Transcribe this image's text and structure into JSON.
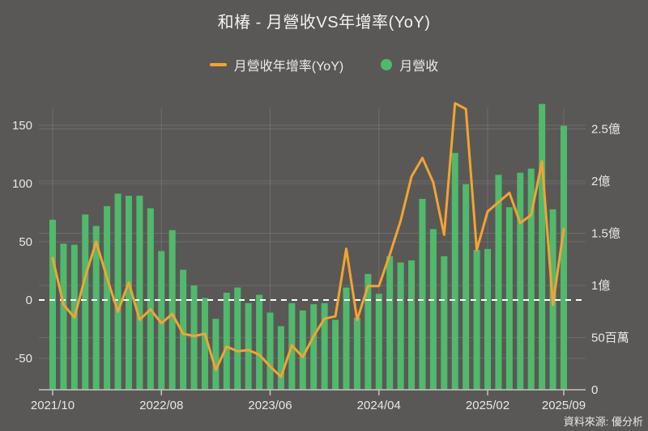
{
  "page": {
    "title": "和椿 - 月營收VS年增率(YoY)",
    "source_note": "資料來源: 優分析"
  },
  "legend": {
    "line_label": "月營收年增率(YoY)",
    "bar_label": "月營收"
  },
  "colors": {
    "background": "#5a5856",
    "bar": "#50b96c",
    "line": "#f2a431",
    "zero_line": "#ffffff",
    "grid": "rgba(255,255,255,0.13)",
    "axis": "#c6c3c0",
    "text": "#e9e7e4"
  },
  "chart_data": {
    "type": "combo",
    "title": "和椿 - 月營收VS年增率(YoY)",
    "legend_position": "top",
    "grid": true,
    "categories": [
      "2021/10",
      "2021/11",
      "2021/12",
      "2022/01",
      "2022/02",
      "2022/03",
      "2022/04",
      "2022/05",
      "2022/06",
      "2022/07",
      "2022/08",
      "2022/09",
      "2022/10",
      "2022/11",
      "2022/12",
      "2023/01",
      "2023/02",
      "2023/03",
      "2023/04",
      "2023/05",
      "2023/06",
      "2023/07",
      "2023/08",
      "2023/09",
      "2023/10",
      "2023/11",
      "2023/12",
      "2024/01",
      "2024/02",
      "2024/03",
      "2024/04",
      "2024/05",
      "2024/06",
      "2024/07",
      "2024/08",
      "2024/09",
      "2024/10",
      "2024/11",
      "2024/12",
      "2025/01",
      "2025/02",
      "2025/03",
      "2025/04",
      "2025/05",
      "2025/06",
      "2025/07",
      "2025/08",
      "2025/09"
    ],
    "series": [
      {
        "name": "月營收",
        "type": "bar",
        "axis": "right",
        "unit": "百萬",
        "values": [
          163,
          140,
          139,
          168,
          157,
          176,
          188,
          186,
          186,
          174,
          133,
          153,
          115,
          100,
          88,
          68,
          93,
          98,
          83,
          91,
          74,
          61,
          83,
          76,
          82,
          83,
          67,
          98,
          69,
          111,
          92,
          128,
          122,
          124,
          183,
          154,
          128,
          227,
          197,
          134,
          135,
          206,
          175,
          208,
          212,
          274,
          173,
          253
        ]
      },
      {
        "name": "月營收年增率(YoY)",
        "type": "line",
        "axis": "left",
        "unit": "%",
        "values": [
          36,
          -4,
          -15,
          20,
          50,
          19,
          -10,
          15,
          -17,
          -8,
          -20,
          -12,
          -29,
          -31,
          -29,
          -60,
          -40,
          -44,
          -43,
          -47,
          -57,
          -66,
          -39,
          -49,
          -31,
          -16,
          -14,
          44,
          -17,
          12,
          12,
          39,
          68,
          106,
          122,
          101,
          56,
          169,
          164,
          43,
          76,
          84,
          92,
          66,
          73,
          119,
          -4,
          61
        ]
      }
    ],
    "left_axis": {
      "unit": "%",
      "range": [
        -77,
        165
      ],
      "zero_line_dashed": true,
      "ticks": [
        {
          "value": 150,
          "label": "150"
        },
        {
          "value": 100,
          "label": "100"
        },
        {
          "value": 50,
          "label": "50"
        },
        {
          "value": 0,
          "label": "0"
        },
        {
          "value": -50,
          "label": "-50"
        }
      ]
    },
    "right_axis": {
      "unit": "TWD",
      "range": [
        0,
        270
      ],
      "ticks": [
        {
          "value": 250,
          "label": "2.5億"
        },
        {
          "value": 200,
          "label": "2億"
        },
        {
          "value": 150,
          "label": "1.5億"
        },
        {
          "value": 100,
          "label": "1億"
        },
        {
          "value": 50,
          "label": "50百萬"
        },
        {
          "value": 0,
          "label": "0"
        }
      ]
    },
    "x_axis": {
      "ticks": [
        {
          "index": 0,
          "label": "2021/10"
        },
        {
          "index": 10,
          "label": "2022/08"
        },
        {
          "index": 20,
          "label": "2023/06"
        },
        {
          "index": 30,
          "label": "2024/04"
        },
        {
          "index": 40,
          "label": "2025/02"
        },
        {
          "index": 47,
          "label": "2025/09"
        }
      ]
    }
  }
}
